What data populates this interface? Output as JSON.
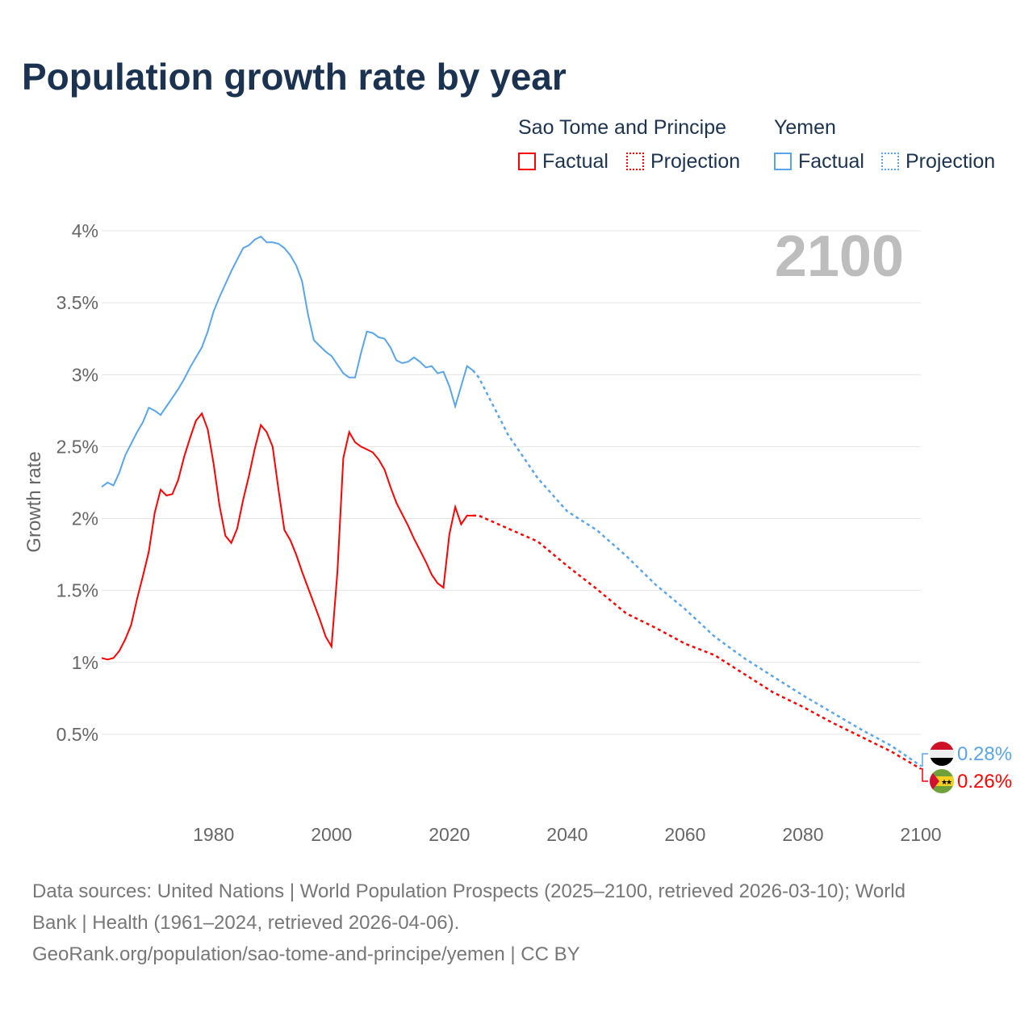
{
  "title": "Population growth rate by year",
  "legend": {
    "groups": [
      {
        "name": "Sao Tome and Principe",
        "color": "#ff0000",
        "factual": "Factual",
        "projection": "Projection"
      },
      {
        "name": "Yemen",
        "color": "#5aa5ea",
        "factual": "Factual",
        "projection": "Projection"
      }
    ]
  },
  "footer": {
    "line1": "Data sources: United Nations | World Population Prospects (2025–2100, retrieved 2026-03-10); World",
    "line2": "Bank | Health (1961–2024, retrieved 2026-04-06).",
    "line3": "GeoRank.org/population/sao-tome-and-principe/yemen | CC BY"
  },
  "chart_data": {
    "type": "line",
    "title": "Population growth rate by year",
    "ylabel": "Growth rate",
    "xlabel": "",
    "xlim": [
      1961,
      2100
    ],
    "ylim": [
      0,
      4
    ],
    "year_watermark": "2100",
    "xticks": [
      1980,
      2000,
      2020,
      2040,
      2060,
      2080,
      2100
    ],
    "yticks": [
      {
        "v": 0.5,
        "label": "0.5%"
      },
      {
        "v": 1,
        "label": "1%"
      },
      {
        "v": 1.5,
        "label": "1.5%"
      },
      {
        "v": 2,
        "label": "2%"
      },
      {
        "v": 2.5,
        "label": "2.5%"
      },
      {
        "v": 3,
        "label": "3%"
      },
      {
        "v": 3.5,
        "label": "3.5%"
      },
      {
        "v": 4,
        "label": "4%"
      }
    ],
    "grid": true,
    "series": [
      {
        "name": "Yemen",
        "color": "#5aa5ea",
        "end_label": "0.28%",
        "factual": {
          "start": 1961,
          "values": [
            2.22,
            2.25,
            2.23,
            2.32,
            2.44,
            2.52,
            2.6,
            2.67,
            2.77,
            2.75,
            2.72,
            2.78,
            2.84,
            2.9,
            2.97,
            3.05,
            3.12,
            3.19,
            3.3,
            3.44,
            3.54,
            3.63,
            3.72,
            3.8,
            3.88,
            3.9,
            3.94,
            3.96,
            3.92,
            3.92,
            3.91,
            3.88,
            3.83,
            3.76,
            3.65,
            3.42,
            3.24,
            3.2,
            3.16,
            3.13,
            3.07,
            3.01,
            2.98,
            2.98,
            3.15,
            3.3,
            3.29,
            3.26,
            3.25,
            3.19,
            3.1,
            3.08,
            3.09,
            3.12,
            3.09,
            3.05,
            3.06,
            3.01,
            3.02,
            2.92,
            2.78,
            2.92,
            3.06,
            3.03
          ]
        },
        "projection": {
          "x": [
            2024,
            2025,
            2030,
            2035,
            2040,
            2045,
            2050,
            2055,
            2060,
            2065,
            2070,
            2075,
            2080,
            2085,
            2090,
            2095,
            2100
          ],
          "values": [
            3.03,
            2.98,
            2.58,
            2.28,
            2.05,
            1.92,
            1.74,
            1.54,
            1.37,
            1.18,
            1.03,
            0.9,
            0.77,
            0.65,
            0.53,
            0.42,
            0.28
          ]
        }
      },
      {
        "name": "Sao Tome and Principe",
        "color": "#ff0000",
        "end_label": "0.26%",
        "factual": {
          "start": 1961,
          "values": [
            1.03,
            1.02,
            1.03,
            1.08,
            1.16,
            1.26,
            1.44,
            1.6,
            1.77,
            2.04,
            2.2,
            2.16,
            2.17,
            2.27,
            2.43,
            2.56,
            2.68,
            2.73,
            2.62,
            2.38,
            2.09,
            1.88,
            1.83,
            1.93,
            2.13,
            2.3,
            2.49,
            2.65,
            2.6,
            2.5,
            2.2,
            1.92,
            1.85,
            1.75,
            1.63,
            1.52,
            1.41,
            1.3,
            1.18,
            1.11,
            1.63,
            2.42,
            2.6,
            2.53,
            2.5,
            2.48,
            2.46,
            2.41,
            2.34,
            2.22,
            2.11,
            2.03,
            1.95,
            1.86,
            1.78,
            1.7,
            1.61,
            1.55,
            1.52,
            1.89,
            2.08,
            1.96,
            2.02,
            2.02
          ]
        },
        "projection": {
          "x": [
            2024,
            2025,
            2030,
            2035,
            2040,
            2045,
            2050,
            2055,
            2060,
            2065,
            2070,
            2075,
            2080,
            2085,
            2090,
            2095,
            2100
          ],
          "values": [
            2.02,
            2.02,
            1.93,
            1.84,
            1.67,
            1.51,
            1.34,
            1.24,
            1.13,
            1.05,
            0.92,
            0.79,
            0.69,
            0.58,
            0.48,
            0.38,
            0.26
          ]
        }
      }
    ]
  }
}
